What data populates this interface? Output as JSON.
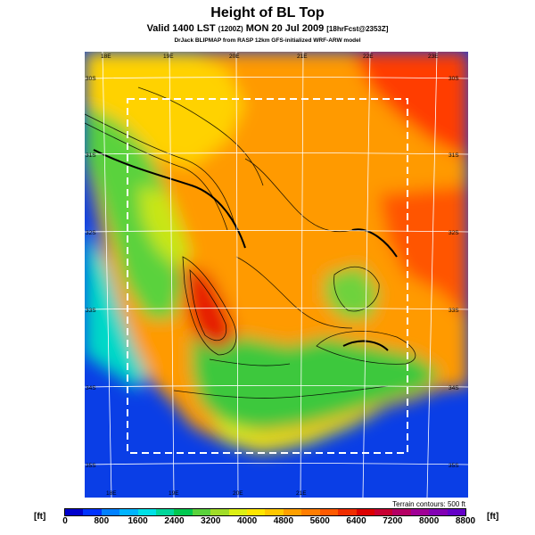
{
  "header": {
    "title": "Height of BL Top",
    "subtitle_main": "Valid 1400 LST",
    "subtitle_code": "(1200Z)",
    "subtitle_date": "MON 20 Jul 2009",
    "subtitle_tail": "[18hrFcst@2353Z]",
    "credit": "DrJack BLIPMAP from RASP 12km GFS-initialized WRF-ARW model"
  },
  "map": {
    "lon_labels_top": [
      "18E",
      "19E",
      "20E",
      "21E",
      "22E",
      "23E"
    ],
    "lon_labels_bottom": [
      "18E",
      "19E",
      "20E",
      "21E"
    ],
    "lat_labels_left": [
      "30S",
      "31S",
      "32S",
      "33S",
      "34S",
      "35S"
    ],
    "lat_labels_right": [
      "30S",
      "31S",
      "32S",
      "33S",
      "34S",
      "35S"
    ],
    "terrain_note": "Terrain contours: 500 ft"
  },
  "colorbar": {
    "unit": "[ft]",
    "labels": [
      "0",
      "800",
      "1600",
      "2400",
      "3200",
      "4000",
      "4800",
      "5600",
      "6400",
      "7200",
      "8000",
      "8800"
    ],
    "colors": [
      "#0000cc",
      "#0033ff",
      "#0080ff",
      "#00b4ff",
      "#00e0e6",
      "#00d69a",
      "#00c850",
      "#5ad23c",
      "#a0dc28",
      "#dcf014",
      "#ffe600",
      "#ffc800",
      "#ffa000",
      "#ff7d00",
      "#ff5a00",
      "#f02d00",
      "#dc0000",
      "#c80032",
      "#b40064",
      "#a00096",
      "#8200b4",
      "#6400c8"
    ]
  }
}
